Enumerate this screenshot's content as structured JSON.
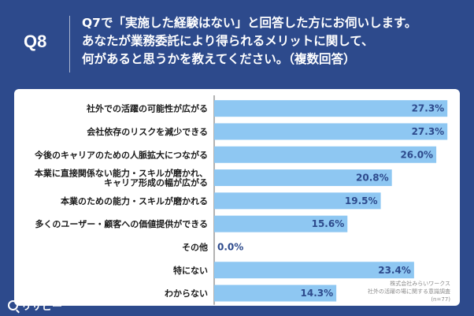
{
  "header": {
    "qnum": "Q8",
    "lines": [
      "Q7で「実施した経験はない」と回答した方にお伺いします。",
      "あなたが業務委託により得られるメリットに関して、",
      "何があると思うかを教えてください。（複数回答）"
    ]
  },
  "logo": {
    "text": "リサピー"
  },
  "source": {
    "lines": [
      "株式会社みらいワークス",
      "社外の活躍の場に関する意識調査",
      "(n=77)"
    ]
  },
  "colors": {
    "bar": "#8ec7f2",
    "bg": "#2d4a8c",
    "value": "#2d4a8c"
  },
  "chart_data": {
    "type": "bar",
    "orientation": "horizontal",
    "unit": "%",
    "xlim": [
      0,
      30
    ],
    "categories": [
      [
        "社外での活躍の可能性が広がる"
      ],
      [
        "会社依存のリスクを減少できる"
      ],
      [
        "今後のキャリアのための人脈拡大につながる"
      ],
      [
        "本業に直接関係ない能力・スキルが磨かれ、",
        "キャリア形成の幅が広がる"
      ],
      [
        "本業のための能力・スキルが磨かれる"
      ],
      [
        "多くのユーザー・顧客への価値提供ができる"
      ],
      [
        "その他"
      ],
      [
        "特にない"
      ],
      [
        "わからない"
      ]
    ],
    "values": [
      27.3,
      27.3,
      26.0,
      20.8,
      19.5,
      15.6,
      0.0,
      23.4,
      14.3
    ],
    "value_labels": [
      "27.3%",
      "27.3%",
      "26.0%",
      "20.8%",
      "19.5%",
      "15.6%",
      "0.0%",
      "23.4%",
      "14.3%"
    ]
  }
}
